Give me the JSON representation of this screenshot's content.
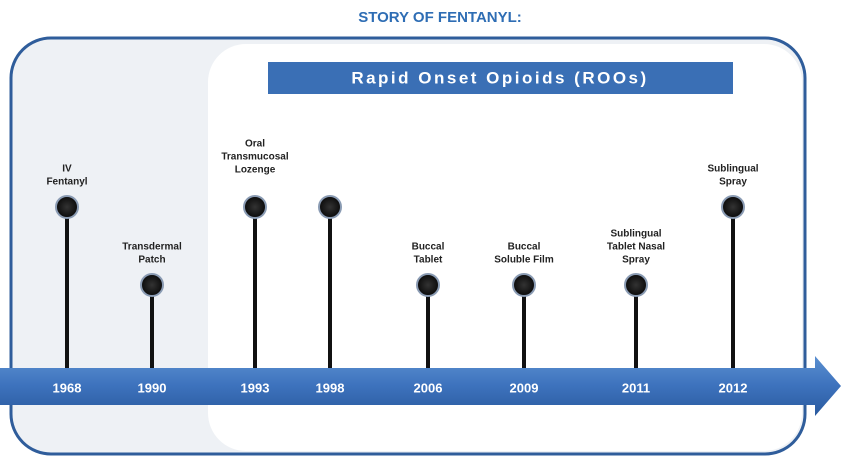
{
  "title": "STORY OF FENTANYL:",
  "banner": "Rapid Onset Opioids (ROOs)",
  "events": [
    {
      "year": "1968",
      "label": [
        "IV",
        "Fentanyl"
      ]
    },
    {
      "year": "1990",
      "label": [
        "Transdermal",
        "Patch"
      ]
    },
    {
      "year": "1993",
      "label": [
        "Oral",
        "Transmucosal",
        "Lozenge"
      ]
    },
    {
      "year": "1998",
      "label": []
    },
    {
      "year": "2006",
      "label": [
        "Buccal",
        "Tablet"
      ]
    },
    {
      "year": "2009",
      "label": [
        "Buccal",
        "Soluble Film"
      ]
    },
    {
      "year": "2011",
      "label": [
        "Sublingual",
        "Tablet Nasal",
        "Spray"
      ]
    },
    {
      "year": "2012",
      "label": [
        "Sublingual",
        "Spray"
      ]
    }
  ]
}
